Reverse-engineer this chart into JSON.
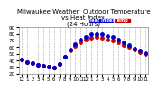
{
  "title": "Milwaukee Weather  Outdoor Temperature\nvs Heat Index\n(24 Hours)",
  "background_color": "#ffffff",
  "plot_bg_color": "#ffffff",
  "grid_color": "#aaaaaa",
  "x_ticks": [
    0,
    1,
    2,
    3,
    4,
    5,
    6,
    7,
    8,
    9,
    10,
    11,
    12,
    13,
    14,
    15,
    16,
    17,
    18,
    19,
    20,
    21,
    22,
    23
  ],
  "x_tick_labels": [
    "12",
    "1",
    "2",
    "3",
    "4",
    "5",
    "6",
    "7",
    "8",
    "9",
    "10",
    "11",
    "12",
    "1",
    "2",
    "3",
    "4",
    "5",
    "6",
    "7",
    "8",
    "9",
    "10",
    "11"
  ],
  "ylim": [
    20,
    90
  ],
  "y_ticks": [
    20,
    30,
    40,
    50,
    60,
    70,
    80,
    90
  ],
  "temp_x": [
    0,
    1,
    2,
    3,
    4,
    5,
    6,
    7,
    8,
    9,
    10,
    11,
    12,
    13,
    14,
    15,
    16,
    17,
    18,
    19,
    20,
    21,
    22,
    23
  ],
  "temp_y": [
    42,
    38,
    36,
    34,
    32,
    30,
    29,
    35,
    45,
    55,
    62,
    68,
    72,
    74,
    75,
    74,
    72,
    70,
    67,
    63,
    60,
    56,
    53,
    50
  ],
  "hi_x": [
    0,
    1,
    2,
    3,
    4,
    5,
    6,
    7,
    8,
    9,
    10,
    11,
    12,
    13,
    14,
    15,
    16,
    17,
    18,
    19,
    20,
    21,
    22,
    23
  ],
  "hi_y": [
    42,
    38,
    36,
    34,
    32,
    30,
    29,
    35,
    45,
    56,
    64,
    71,
    76,
    79,
    80,
    79,
    77,
    75,
    71,
    67,
    63,
    58,
    55,
    51
  ],
  "temp_color": "#cc0000",
  "hi_color": "#0000cc",
  "legend_temp_label": "Temp",
  "legend_hi_label": "Heat Index",
  "legend_temp_color": "#cc0000",
  "legend_hi_color": "#0000cc",
  "marker_size": 2.5,
  "title_fontsize": 5,
  "tick_fontsize": 4,
  "legend_fontsize": 4
}
